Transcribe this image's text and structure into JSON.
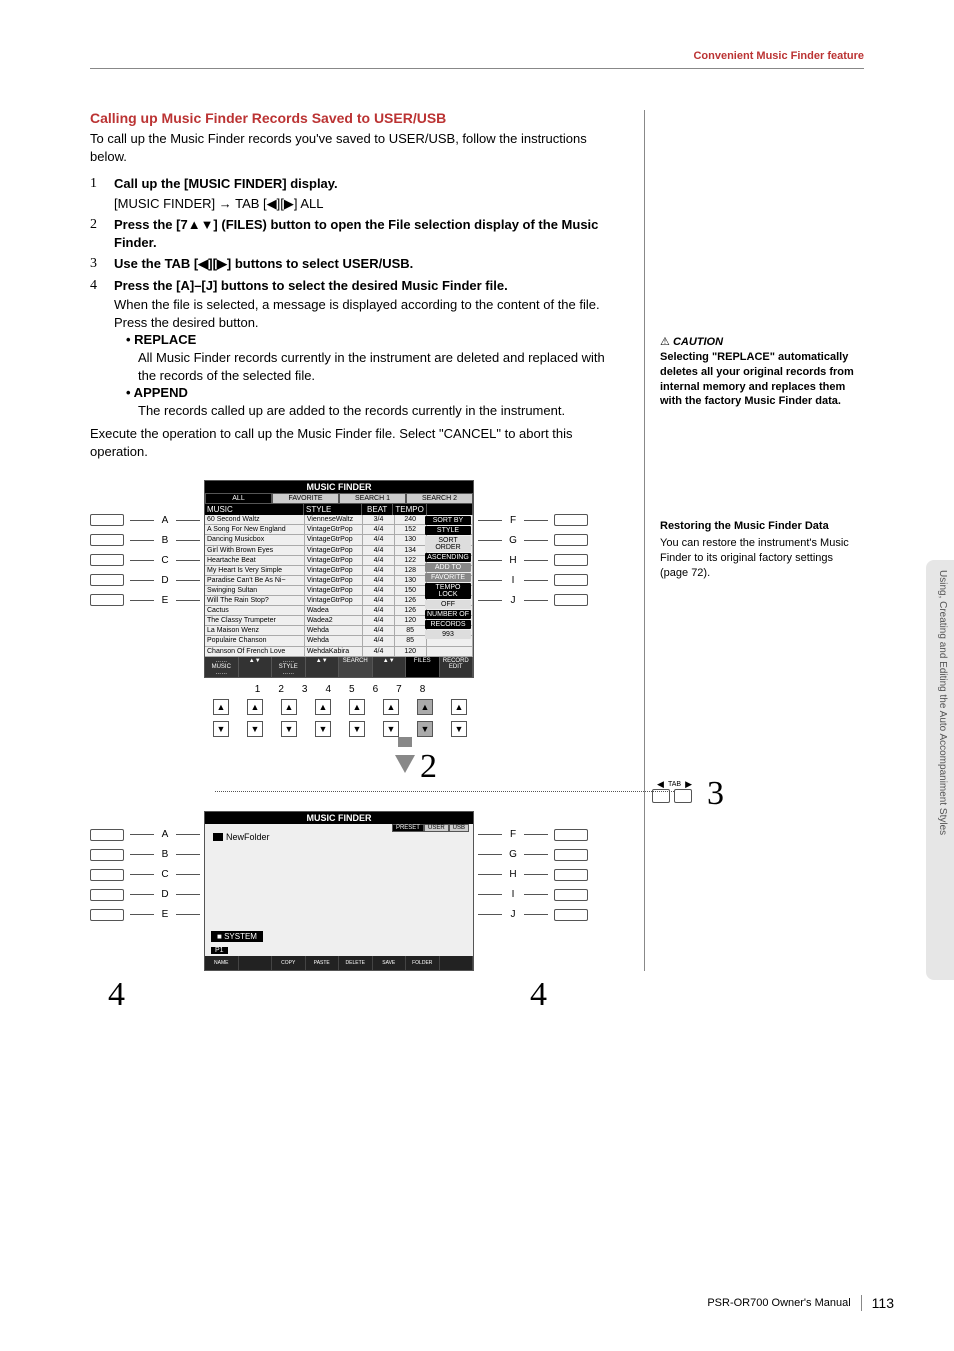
{
  "header": {
    "section": "Convenient Music Finder feature"
  },
  "side_tab": "Using, Creating and Editing the Auto Accompaniment Styles",
  "callout": {
    "title": "Calling up Music Finder Records Saved to USER/USB",
    "intro": "To call up the Music Finder records you've saved to USER/USB, follow the instructions below."
  },
  "steps": {
    "s1_head": "Call up the [MUSIC FINDER] display.",
    "s1_sub": "[MUSIC FINDER] → TAB [◀][▶] ALL",
    "s2_head": "Press the [7▲▼] (FILES) button to open the File selection display of the Music Finder.",
    "s3_head": "Use the TAB [◀][▶] buttons to select USER/USB.",
    "s4_head": "Press the [A]–[J] buttons to select the desired Music Finder file.",
    "s4_body": "When the file is selected, a message is displayed according to the content of the file. Press the desired button.",
    "replace_head": "• REPLACE",
    "replace_body": "All Music Finder records currently in the instrument are deleted and replaced with the records of the selected file.",
    "append_head": "• APPEND",
    "append_body": "The records called up are added to the records currently in the instrument.",
    "closing": "Execute the operation to call up the Music Finder file. Select \"CANCEL\" to abort this operation."
  },
  "caution": {
    "label": "CAUTION",
    "body": "Selecting \"REPLACE\" automatically deletes all your original records from internal memory and replaces them with the factory Music Finder data."
  },
  "restore": {
    "title": "Restoring the Music Finder Data",
    "body": "You can restore the instrument's Music Finder to its original factory settings (page 72)."
  },
  "mf_screen": {
    "title": "MUSIC FINDER",
    "tabs": [
      "ALL",
      "FAVORITE",
      "SEARCH 1",
      "SEARCH 2"
    ],
    "cols": [
      "MUSIC",
      "STYLE",
      "BEAT",
      "TEMPO"
    ],
    "right_buttons": [
      "SORT BY",
      "STYLE",
      "SORT ORDER",
      "ASCENDING",
      "ADD TO",
      "FAVORITE",
      "TEMPO LOCK",
      "OFF",
      "NUMBER OF",
      "RECORDS"
    ],
    "num_records": "993",
    "rows": [
      {
        "music": "60 Second Waltz",
        "style": "VienneseWaltz",
        "beat": "3/4",
        "tempo": "240"
      },
      {
        "music": "A Song For New England",
        "style": "VintageGtrPop",
        "beat": "4/4",
        "tempo": "152"
      },
      {
        "music": "Dancing Musicbox",
        "style": "VintageGtrPop",
        "beat": "4/4",
        "tempo": "130"
      },
      {
        "music": "Girl With Brown Eyes",
        "style": "VintageGtrPop",
        "beat": "4/4",
        "tempo": "134"
      },
      {
        "music": "Heartache Beat",
        "style": "VintageGtrPop",
        "beat": "4/4",
        "tempo": "122"
      },
      {
        "music": "My Heart Is Very Simple",
        "style": "VintageGtrPop",
        "beat": "4/4",
        "tempo": "128"
      },
      {
        "music": "Paradise Can't Be As Ni~",
        "style": "VintageGtrPop",
        "beat": "4/4",
        "tempo": "130"
      },
      {
        "music": "Swinging Sultan",
        "style": "VintageGtrPop",
        "beat": "4/4",
        "tempo": "150"
      },
      {
        "music": "Will The Rain Stop?",
        "style": "VintageGtrPop",
        "beat": "4/4",
        "tempo": "126"
      },
      {
        "music": "Cactus",
        "style": "Wadea",
        "beat": "4/4",
        "tempo": "126"
      },
      {
        "music": "The Classy Trumpeter",
        "style": "Wadea2",
        "beat": "4/4",
        "tempo": "120"
      },
      {
        "music": "La Maison Wenz",
        "style": "Wehda",
        "beat": "4/4",
        "tempo": "85"
      },
      {
        "music": "Populaire Chanson",
        "style": "Wehda",
        "beat": "4/4",
        "tempo": "85"
      },
      {
        "music": "Chanson Of French Love",
        "style": "WehdaKabira",
        "beat": "4/4",
        "tempo": "120"
      }
    ],
    "bottom": [
      "MUSIC",
      "",
      "STYLE",
      "",
      "SEARCH",
      "FILES",
      "RECORD"
    ],
    "bottom2": [
      "▲▼",
      "▲▼",
      "",
      "▲▼",
      "",
      "1/2",
      "",
      "EDIT"
    ]
  },
  "num_row": [
    "1",
    "2",
    "3",
    "4",
    "5",
    "6",
    "7",
    "8"
  ],
  "mf_screen2": {
    "title": "MUSIC FINDER",
    "tabs": [
      "PRESET",
      "USER",
      "USB"
    ],
    "newfolder": "NewFolder",
    "system": "SYSTEM",
    "p1": "P1",
    "bottom": [
      "NAME",
      "",
      "COPY",
      "PASTE",
      "DELETE",
      "SAVE",
      "FOLDER",
      ""
    ]
  },
  "panel_labels_left": [
    "A",
    "B",
    "C",
    "D",
    "E"
  ],
  "panel_labels_right": [
    "F",
    "G",
    "H",
    "I",
    "J"
  ],
  "big_nums": {
    "two": "2",
    "three": "3",
    "four_l": "4",
    "four_r": "4"
  },
  "tab_label": "TAB",
  "footer": {
    "manual": "PSR-OR700 Owner's Manual",
    "page": "113"
  }
}
